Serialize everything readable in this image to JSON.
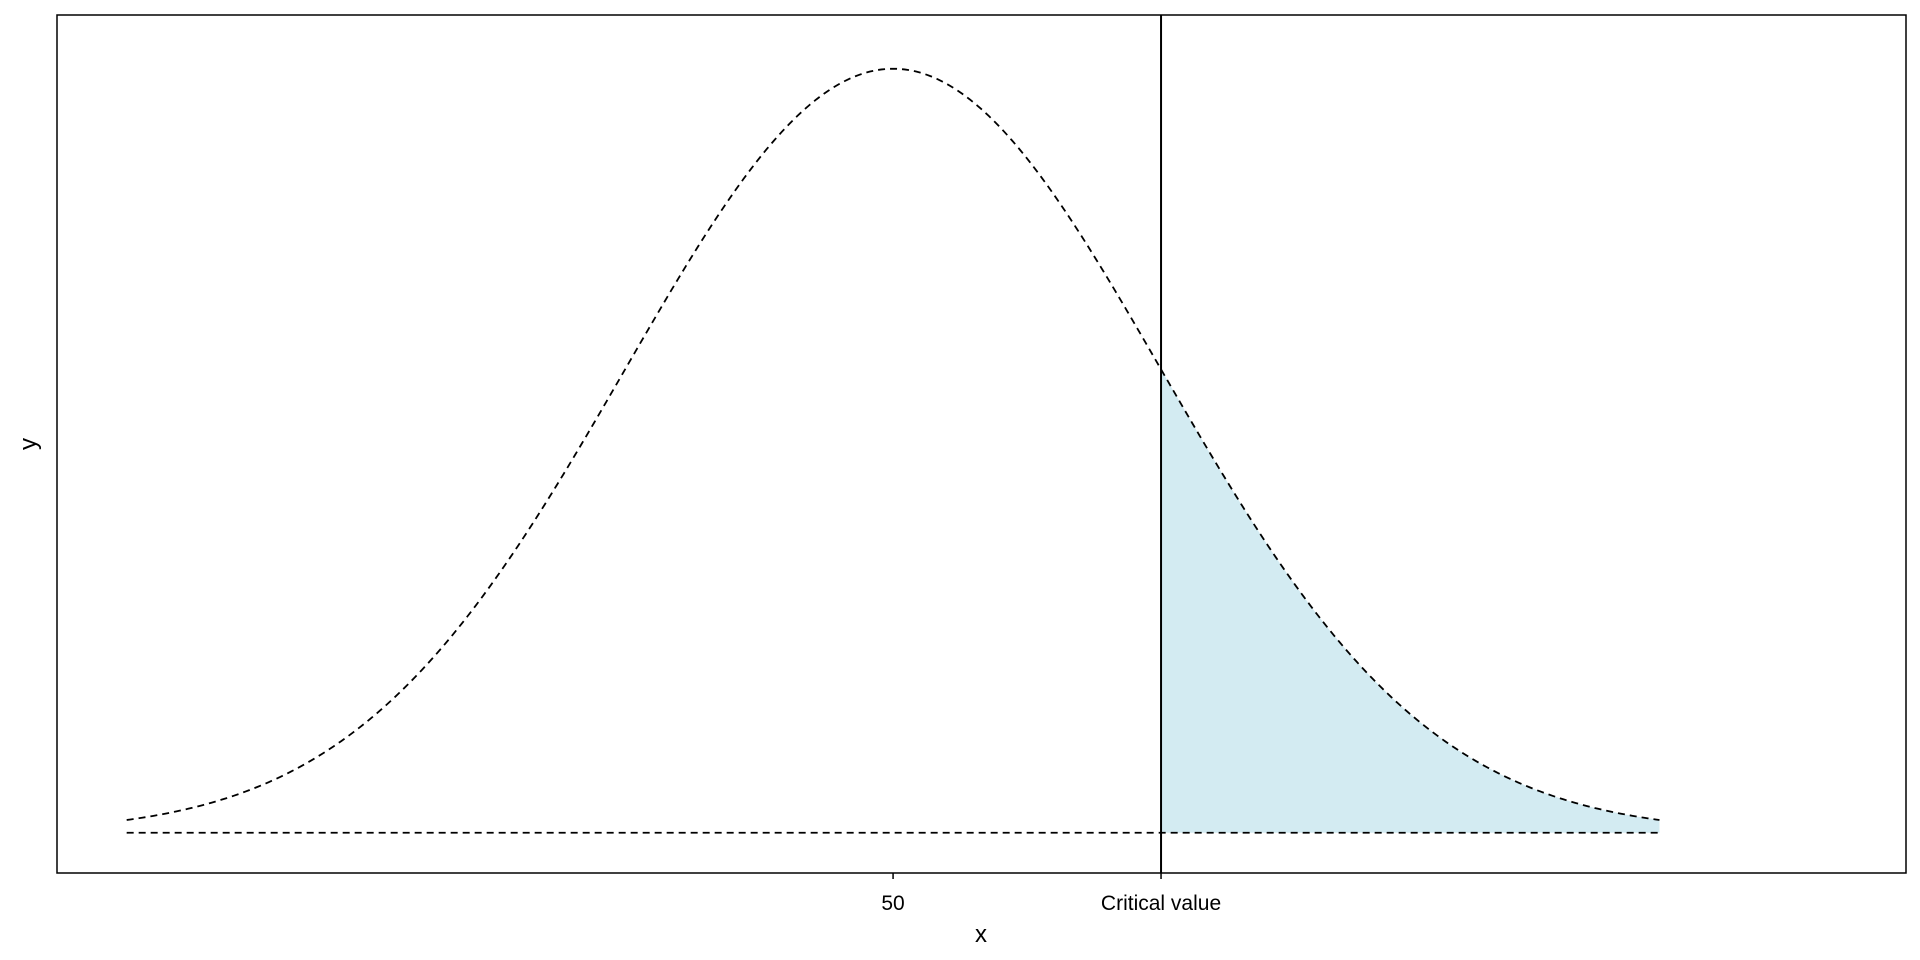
{
  "chart_data": {
    "type": "area",
    "distribution": "normal",
    "mean": 50,
    "sd": 10,
    "critical_value": 60,
    "x_range": [
      21.4,
      78.6
    ],
    "xlim": [
      18.8,
      87.8
    ],
    "ylim": [
      -0.0021,
      0.0427
    ],
    "xlabel": "x",
    "ylabel": "y",
    "ticks": [
      {
        "value": 50,
        "label": "50"
      },
      {
        "value": 60,
        "label": "Critical value"
      }
    ],
    "shaded_region": "right tail (x ≥ critical value)",
    "colors": {
      "shade": "#d3ebf2",
      "line": "#000000",
      "frame": "#000000"
    },
    "grid": false,
    "legend": "none"
  }
}
